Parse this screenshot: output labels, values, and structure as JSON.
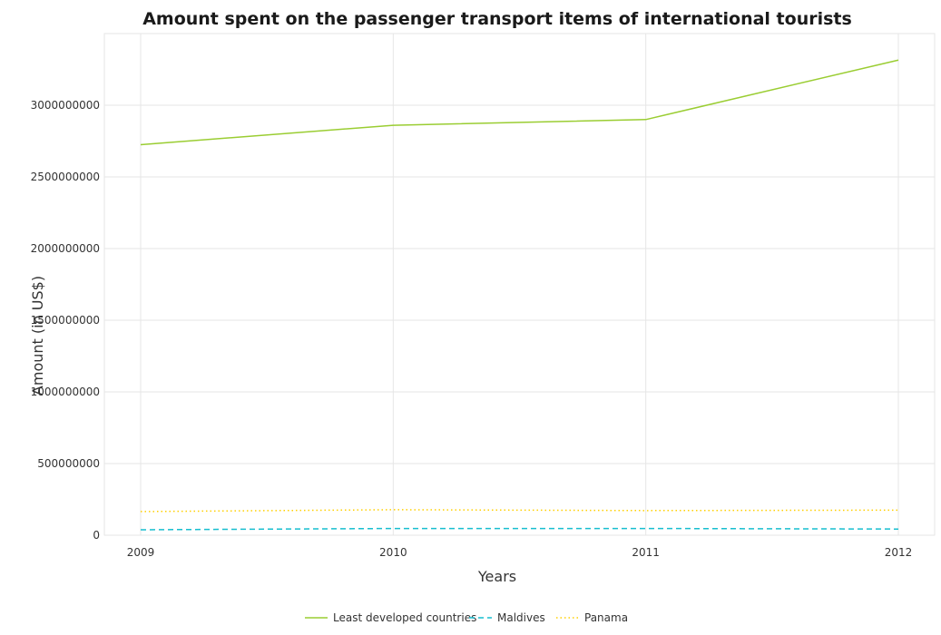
{
  "chart_data": {
    "type": "line",
    "title": "Amount spent on the passenger transport items of international tourists",
    "xlabel": "Years",
    "ylabel": "Amount (in US$)",
    "categories": [
      "2009",
      "2010",
      "2011",
      "2012"
    ],
    "ylim": [
      0,
      3500000000
    ],
    "yticks": [
      0,
      500000000,
      1000000000,
      1500000000,
      2000000000,
      2500000000,
      3000000000
    ],
    "ytick_labels": [
      "0",
      "500000000",
      "1000000000",
      "1500000000",
      "2000000000",
      "2500000000",
      "3000000000"
    ],
    "grid": true,
    "legend_position": "bottom-center",
    "series": [
      {
        "name": "Least developed countries",
        "color": "#9acd32",
        "dash": "solid",
        "values": [
          2725000000,
          2860000000,
          2900000000,
          3315000000
        ]
      },
      {
        "name": "Maldives",
        "color": "#17becf",
        "dash": "dashed",
        "values": [
          38000000,
          47000000,
          47000000,
          43000000
        ]
      },
      {
        "name": "Panama",
        "color": "#ffd000",
        "dash": "dotted",
        "values": [
          165000000,
          178000000,
          172000000,
          175000000
        ]
      }
    ]
  }
}
